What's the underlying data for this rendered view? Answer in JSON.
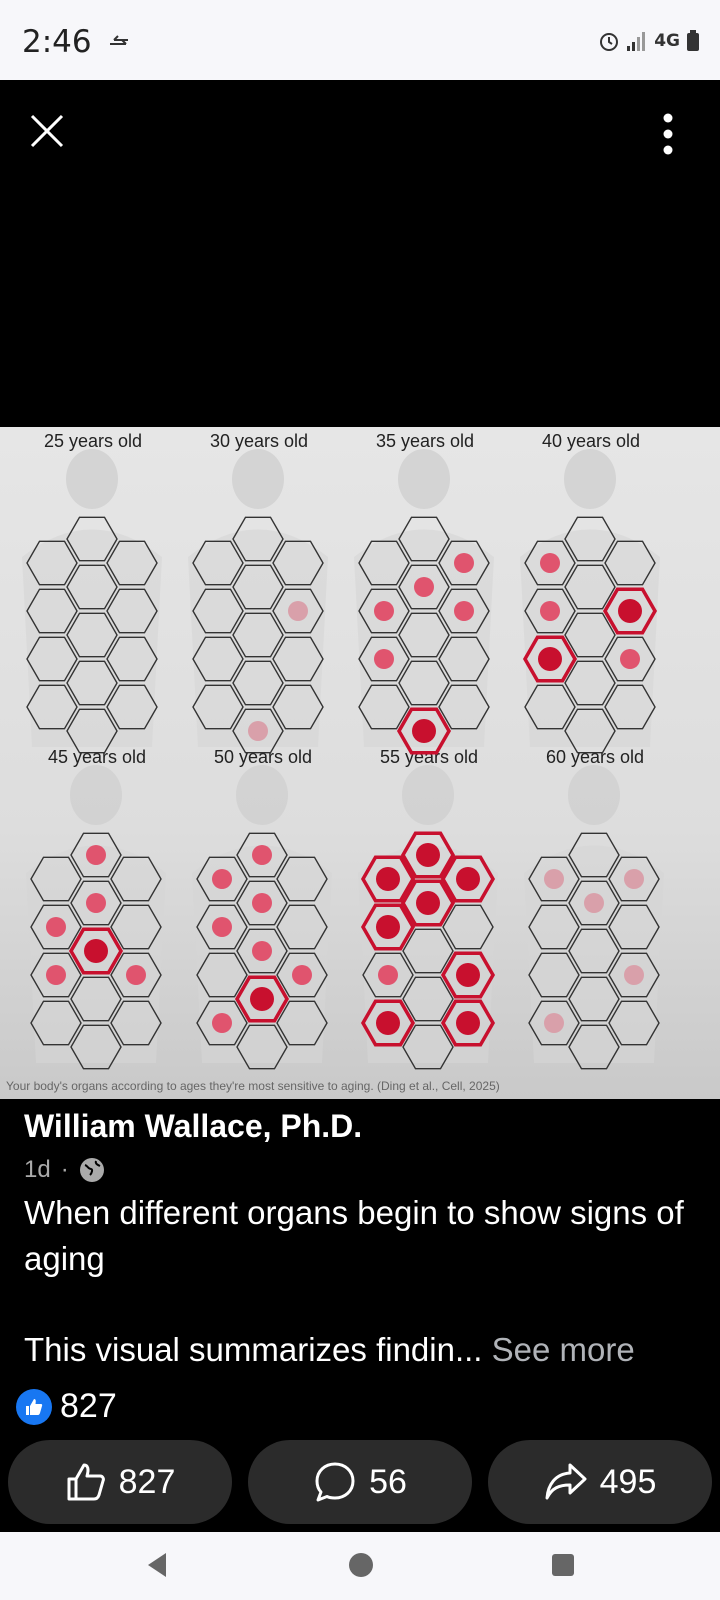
{
  "status": {
    "time": "2:46",
    "network": "4G"
  },
  "image": {
    "panels": [
      "25 years old",
      "30 years old",
      "35 years old",
      "40 years old",
      "45 years old",
      "50 years old",
      "55 years old",
      "60 years old"
    ],
    "caption": "Your body's organs according to ages they're most sensitive to aging. (Ding et al., Cell, 2025)"
  },
  "post": {
    "author": "William Wallace, Ph.D.",
    "time": "1d",
    "line1": "When different organs begin to show signs of aging",
    "line2": "This visual summarizes findin...",
    "see_more": "See more",
    "reaction_count": "827"
  },
  "actions": {
    "like_count": "827",
    "comment_count": "56",
    "share_count": "495"
  },
  "colors": {
    "highlight": "#c8102e",
    "organ": "#e0546e",
    "faded": "#d9a0aa"
  }
}
